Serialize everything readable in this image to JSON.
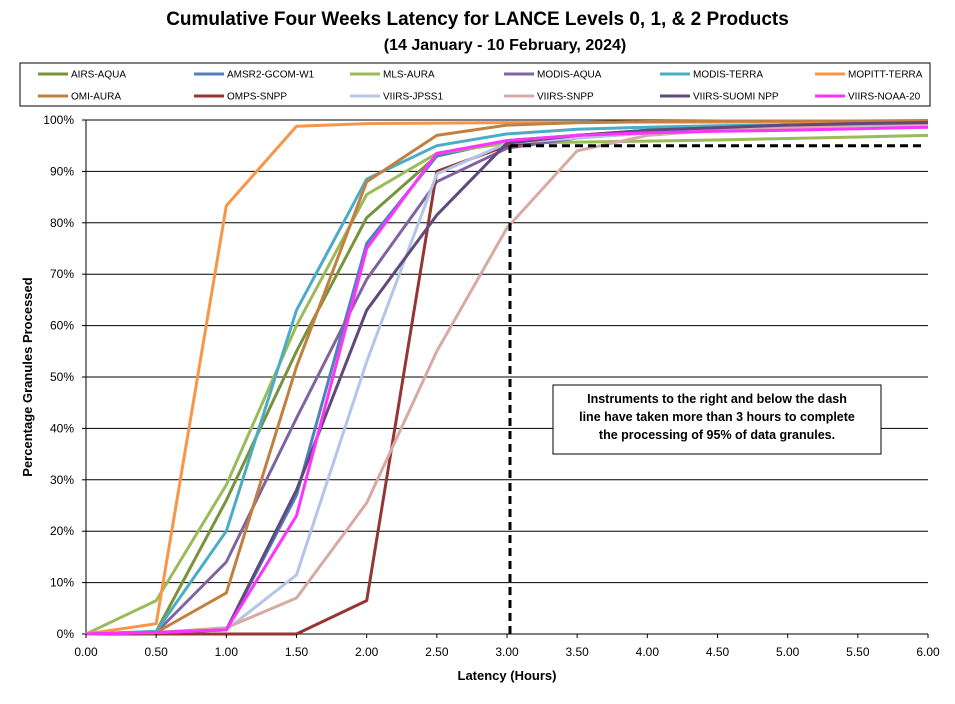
{
  "chart_data": {
    "type": "line",
    "title": "Cumulative Four Weeks Latency  for LANCE Levels 0, 1, & 2 Products",
    "subtitle": "(14  January   -  10  February,  2024)",
    "xlabel": "Latency (Hours)",
    "ylabel": "Percentage Granules Processed",
    "xlim": [
      0,
      6
    ],
    "ylim": [
      0,
      100
    ],
    "x_ticks": [
      "0.00",
      "0.50",
      "1.00",
      "1.50",
      "2.00",
      "2.50",
      "3.00",
      "3.50",
      "4.00",
      "4.50",
      "5.00",
      "5.50",
      "6.00"
    ],
    "y_ticks": [
      "0%",
      "10%",
      "20%",
      "30%",
      "40%",
      "50%",
      "60%",
      "70%",
      "80%",
      "90%",
      "100%"
    ],
    "grid": "horizontal",
    "legend_position": "top",
    "annotation": {
      "lines": [
        "Instruments to the right and below the dash",
        "line have taken more than 3 hours to complete",
        "the processing of 95% of data granules."
      ]
    },
    "reference_line": {
      "x": 3.0,
      "y": 95
    },
    "series": [
      {
        "name": "AIRS-AQUA",
        "color": "#77933C",
        "x": [
          0,
          0.5,
          1,
          1.5,
          2,
          2.5,
          3,
          3.5,
          4,
          4.5,
          5,
          5.5,
          6
        ],
        "values": [
          0,
          0.5,
          26,
          55,
          81,
          93,
          96,
          97,
          97.5,
          98,
          98.5,
          98.5,
          98.8
        ]
      },
      {
        "name": "AMSR2-GCOM-W1",
        "color": "#4F81BD",
        "x": [
          0,
          0.5,
          1,
          1.5,
          2,
          2.5,
          3,
          3.5,
          4,
          4.5,
          5,
          5.5,
          6
        ],
        "values": [
          0,
          0.3,
          0.8,
          27,
          76,
          93,
          96,
          97,
          97.5,
          98,
          98.5,
          99,
          99.2
        ]
      },
      {
        "name": "MLS-AURA",
        "color": "#9BBB59",
        "x": [
          0,
          0.5,
          1,
          1.5,
          2,
          2.5,
          3,
          3.5,
          4,
          4.5,
          5,
          5.5,
          6
        ],
        "values": [
          0,
          6.5,
          29,
          60,
          85.5,
          93.5,
          95.5,
          95.7,
          95.9,
          96.1,
          96.4,
          96.7,
          97
        ]
      },
      {
        "name": "MODIS-AQUA",
        "color": "#8064A2",
        "x": [
          0,
          0.5,
          1,
          1.5,
          2,
          2.5,
          3,
          3.5,
          4,
          4.5,
          5,
          5.5,
          6
        ],
        "values": [
          0,
          0.3,
          14,
          42,
          69,
          88,
          94.5,
          96.5,
          97.5,
          98,
          98.5,
          99,
          99.3
        ]
      },
      {
        "name": "MODIS-TERRA",
        "color": "#4BACC6",
        "x": [
          0,
          0.5,
          1,
          1.5,
          2,
          2.5,
          3,
          3.5,
          4,
          4.5,
          5,
          5.5,
          6
        ],
        "values": [
          0,
          0.5,
          20,
          63,
          88.5,
          95,
          97.3,
          98.2,
          98.6,
          98.9,
          99,
          99.2,
          99.4
        ]
      },
      {
        "name": "MOPITT-TERRA",
        "color": "#F79646",
        "x": [
          0,
          0.5,
          1,
          1.5,
          2,
          2.5,
          3,
          3.5,
          4,
          4.5,
          5,
          5.5,
          6
        ],
        "values": [
          0,
          2,
          83.3,
          98.8,
          99.3,
          99.4,
          99.5,
          99.5,
          99.6,
          99.6,
          99.6,
          99.6,
          99.7
        ]
      },
      {
        "name": "OMI-AURA",
        "color": "#C0803F",
        "x": [
          0,
          0.5,
          1,
          1.5,
          2,
          2.5,
          3,
          3.5,
          4,
          4.5,
          5,
          5.5,
          6
        ],
        "values": [
          0,
          0.3,
          8,
          52,
          88,
          97,
          99,
          99.5,
          99.7,
          99.8,
          99.8,
          99.8,
          99.9
        ]
      },
      {
        "name": "OMPS-SNPP",
        "color": "#943634",
        "x": [
          0,
          0.5,
          1,
          1.5,
          2,
          2.5,
          3,
          3.5,
          4,
          4.5,
          5,
          5.5,
          6
        ],
        "values": [
          0,
          0,
          0,
          0,
          6.5,
          90,
          95,
          97,
          98,
          98.5,
          99,
          99.2,
          99.5
        ]
      },
      {
        "name": "VIIRS-JPSS1",
        "color": "#B4C6E7",
        "x": [
          0,
          0.5,
          1,
          1.5,
          2,
          2.5,
          3,
          3.5,
          4,
          4.5,
          5,
          5.5,
          6
        ],
        "values": [
          0,
          0.3,
          0.8,
          11.5,
          53,
          89.5,
          95.5,
          96.5,
          97.5,
          98,
          98.5,
          98.8,
          99
        ]
      },
      {
        "name": "VIIRS-SNPP",
        "color": "#D9A9A4",
        "x": [
          0,
          0.5,
          1,
          1.5,
          2,
          2.5,
          3,
          3.5,
          4,
          4.5,
          5,
          5.5,
          6
        ],
        "values": [
          0,
          0.3,
          1.2,
          7,
          25.5,
          55,
          79,
          94,
          97,
          98,
          98.5,
          99,
          99.3
        ]
      },
      {
        "name": "VIIRS-SUOMI NPP",
        "color": "#604A7B",
        "x": [
          0,
          0.5,
          1,
          1.5,
          2,
          2.5,
          3,
          3.5,
          4,
          4.5,
          5,
          5.5,
          6
        ],
        "values": [
          0,
          0.3,
          0.8,
          28,
          63,
          81.5,
          95.5,
          97,
          98,
          98.5,
          99,
          99.3,
          99.5
        ]
      },
      {
        "name": "VIIRS-NOAA-20",
        "color": "#FF33FF",
        "x": [
          0,
          0.5,
          1,
          1.5,
          2,
          2.5,
          3,
          3.5,
          4,
          4.5,
          5,
          5.5,
          6
        ],
        "values": [
          0,
          0.3,
          0.8,
          23,
          75,
          93.5,
          96,
          97,
          97.5,
          97.8,
          98,
          98.3,
          98.6
        ]
      }
    ]
  }
}
